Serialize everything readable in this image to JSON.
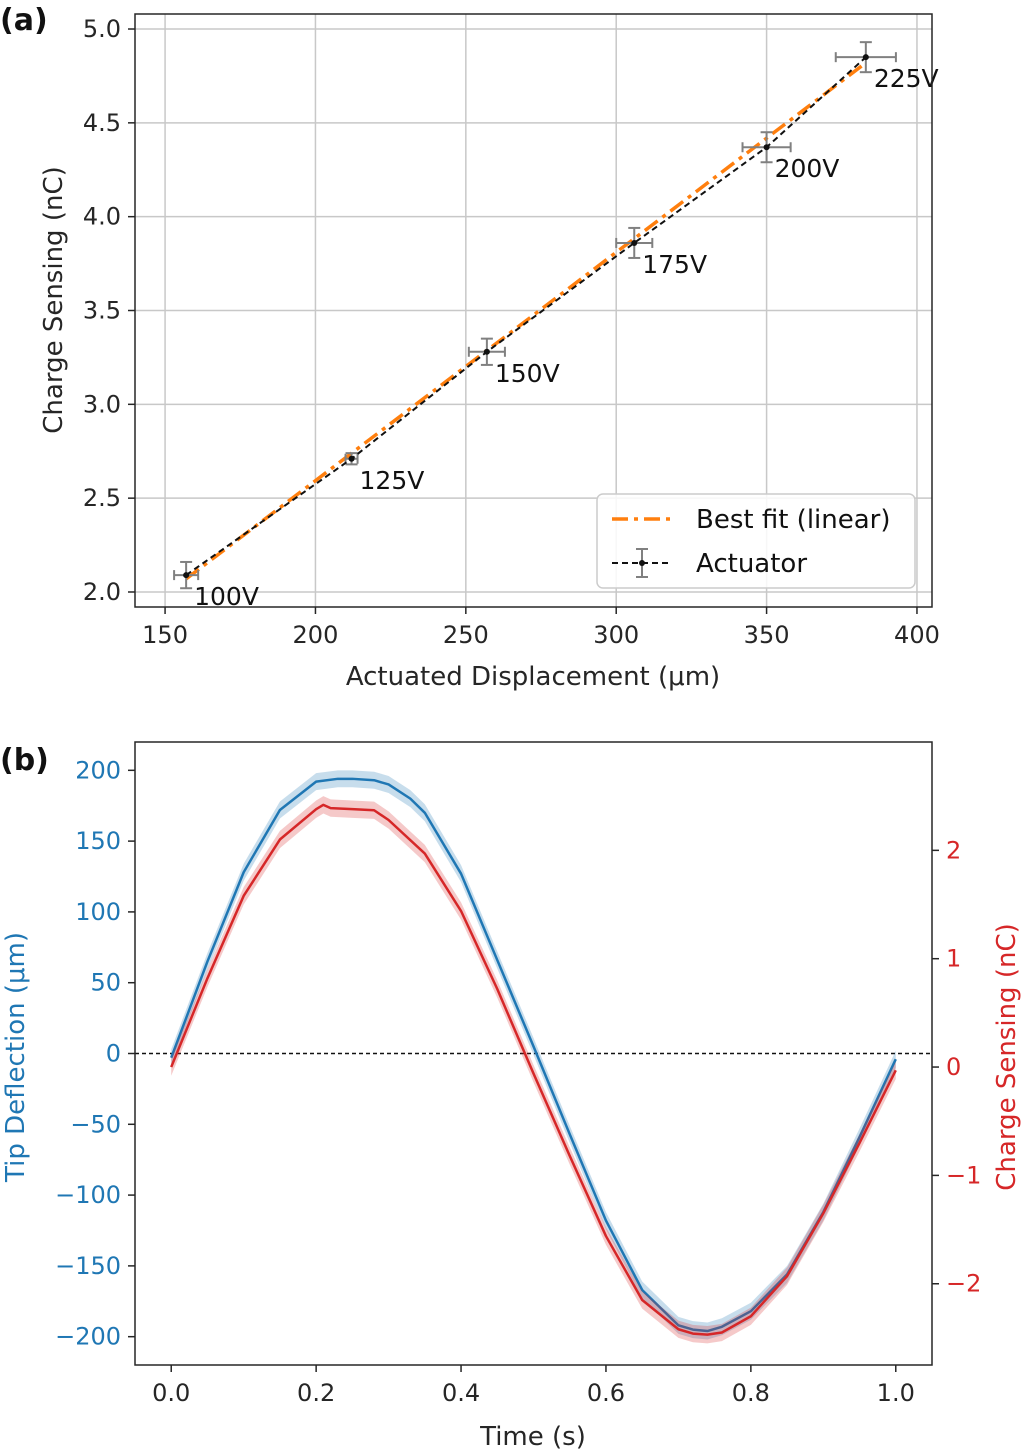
{
  "chart_data": [
    {
      "type": "scatter",
      "panel_label": "(a)",
      "xlabel": "Actuated Displacement (μm)",
      "ylabel": "Charge Sensing (nC)",
      "xlim": [
        140,
        405
      ],
      "ylim": [
        1.92,
        5.08
      ],
      "xticks": [
        "150",
        "200",
        "250",
        "300",
        "350",
        "400"
      ],
      "xtick_values": [
        150,
        200,
        250,
        300,
        350,
        400
      ],
      "yticks": [
        "2.0",
        "2.5",
        "3.0",
        "3.5",
        "4.0",
        "4.5",
        "5.0"
      ],
      "ytick_values": [
        2.0,
        2.5,
        3.0,
        3.5,
        4.0,
        4.5,
        5.0
      ],
      "grid": true,
      "legend_position": "lower-right",
      "series": [
        {
          "name": "Best fit (linear)",
          "style": "dash-dot",
          "color": "#ff7f0e",
          "x": [
            157,
            383
          ],
          "y": [
            2.07,
            4.82
          ]
        },
        {
          "name": "Actuator",
          "style": "dashed-errorbar",
          "color": "#111111",
          "errorbar_color": "#808080",
          "x": [
            157,
            212,
            257,
            306,
            350,
            383
          ],
          "y": [
            2.09,
            2.71,
            3.28,
            3.86,
            4.37,
            4.85
          ],
          "xerr": [
            4,
            2,
            6,
            6,
            8,
            10
          ],
          "yerr": [
            0.07,
            0.03,
            0.07,
            0.08,
            0.08,
            0.08
          ],
          "labels": [
            "100V",
            "125V",
            "150V",
            "175V",
            "200V",
            "225V"
          ]
        }
      ]
    },
    {
      "type": "line",
      "panel_label": "(b)",
      "xlabel": "Time (s)",
      "ylabel": "Tip Deflection (μm)",
      "y2label": "Charge Sensing (nC)",
      "xlim": [
        -0.05,
        1.05
      ],
      "ylim": [
        -220,
        220
      ],
      "y2lim": [
        -2.75,
        3.0
      ],
      "xticks": [
        "0.0",
        "0.2",
        "0.4",
        "0.6",
        "0.8",
        "1.0"
      ],
      "xtick_values": [
        0.0,
        0.2,
        0.4,
        0.6,
        0.8,
        1.0
      ],
      "yticks": [
        "200",
        "150",
        "100",
        "50",
        "0",
        "−50",
        "−100",
        "−150",
        "−200"
      ],
      "ytick_values": [
        200,
        150,
        100,
        50,
        0,
        -50,
        -100,
        -150,
        -200
      ],
      "y2ticks": [
        "2",
        "1",
        "0",
        "−1",
        "−2"
      ],
      "y2tick_values": [
        2,
        1,
        0,
        -1,
        -2
      ],
      "grid": false,
      "zero_line": true,
      "series": [
        {
          "axis": "left",
          "color": "#1f77b4",
          "band": 6,
          "x": [
            0.0,
            0.05,
            0.1,
            0.15,
            0.2,
            0.23,
            0.25,
            0.28,
            0.3,
            0.33,
            0.35,
            0.4,
            0.45,
            0.5,
            0.55,
            0.6,
            0.65,
            0.7,
            0.72,
            0.74,
            0.76,
            0.8,
            0.85,
            0.9,
            0.95,
            1.0
          ],
          "y": [
            -3,
            65,
            128,
            172,
            192,
            194,
            194,
            193,
            190,
            180,
            170,
            127,
            66,
            5,
            -57,
            -118,
            -167,
            -192,
            -195,
            -196,
            -193,
            -182,
            -156,
            -112,
            -59,
            -4
          ]
        },
        {
          "axis": "right",
          "color": "#d62728",
          "band": 0.08,
          "x": [
            0.0,
            0.05,
            0.1,
            0.15,
            0.2,
            0.21,
            0.22,
            0.25,
            0.28,
            0.3,
            0.35,
            0.4,
            0.45,
            0.5,
            0.55,
            0.6,
            0.65,
            0.7,
            0.72,
            0.74,
            0.76,
            0.8,
            0.85,
            0.9,
            0.95,
            1.0
          ],
          "y": [
            0.0,
            0.82,
            1.58,
            2.1,
            2.38,
            2.42,
            2.39,
            2.38,
            2.37,
            2.28,
            1.97,
            1.44,
            0.72,
            -0.06,
            -0.82,
            -1.56,
            -2.15,
            -2.42,
            -2.46,
            -2.47,
            -2.45,
            -2.3,
            -1.93,
            -1.35,
            -0.7,
            -0.03
          ]
        }
      ]
    }
  ]
}
